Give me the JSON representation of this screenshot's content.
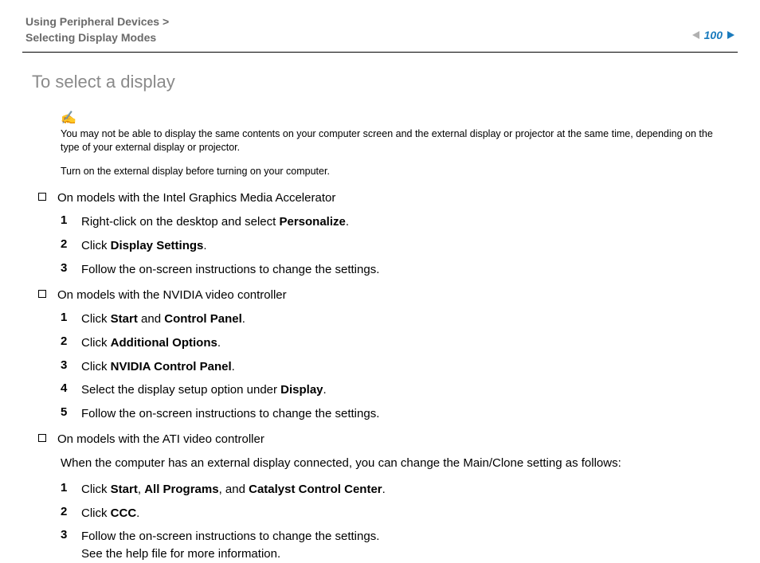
{
  "header": {
    "breadcrumb_line1": "Using Peripheral Devices >",
    "breadcrumb_line2": "Selecting Display Modes",
    "page_number": "100"
  },
  "colors": {
    "accent": "#1a7bbd",
    "muted": "#8a8a8a",
    "breadcrumb": "#6a6a6a",
    "rule": "#000000",
    "arrow_prev": "#b0b0b0"
  },
  "title": "To select a display",
  "note": {
    "icon": "✍",
    "text": "You may not be able to display the same contents on your computer screen and the external display or projector at the same time, depending on the type of your external display or projector."
  },
  "pre_instruction": "Turn on the external display before turning on your computer.",
  "sections": [
    {
      "heading": "On models with the Intel Graphics Media Accelerator",
      "intro": "",
      "steps": [
        {
          "num": "1",
          "parts": [
            "Right-click on the desktop and select ",
            {
              "b": "Personalize"
            },
            "."
          ]
        },
        {
          "num": "2",
          "parts": [
            "Click ",
            {
              "b": "Display Settings"
            },
            "."
          ]
        },
        {
          "num": "3",
          "parts": [
            "Follow the on-screen instructions to change the settings."
          ]
        }
      ]
    },
    {
      "heading": "On models with the NVIDIA video controller",
      "intro": "",
      "steps": [
        {
          "num": "1",
          "parts": [
            "Click ",
            {
              "b": "Start"
            },
            " and ",
            {
              "b": "Control Panel"
            },
            "."
          ]
        },
        {
          "num": "2",
          "parts": [
            "Click ",
            {
              "b": "Additional Options"
            },
            "."
          ]
        },
        {
          "num": "3",
          "parts": [
            "Click ",
            {
              "b": "NVIDIA Control Panel"
            },
            "."
          ]
        },
        {
          "num": "4",
          "parts": [
            "Select the display setup option under ",
            {
              "b": "Display"
            },
            "."
          ]
        },
        {
          "num": "5",
          "parts": [
            "Follow the on-screen instructions to change the settings."
          ]
        }
      ]
    },
    {
      "heading": "On models with the ATI video controller",
      "intro": "When the computer has an external display connected, you can change the Main/Clone setting as follows:",
      "steps": [
        {
          "num": "1",
          "parts": [
            "Click ",
            {
              "b": "Start"
            },
            ", ",
            {
              "b": "All Programs"
            },
            ", and ",
            {
              "b": "Catalyst Control Center"
            },
            "."
          ]
        },
        {
          "num": "2",
          "parts": [
            "Click ",
            {
              "b": "CCC"
            },
            "."
          ]
        },
        {
          "num": "3",
          "parts": [
            "Follow the on-screen instructions to change the settings."
          ],
          "sub": "See the help file for more information."
        }
      ]
    }
  ]
}
